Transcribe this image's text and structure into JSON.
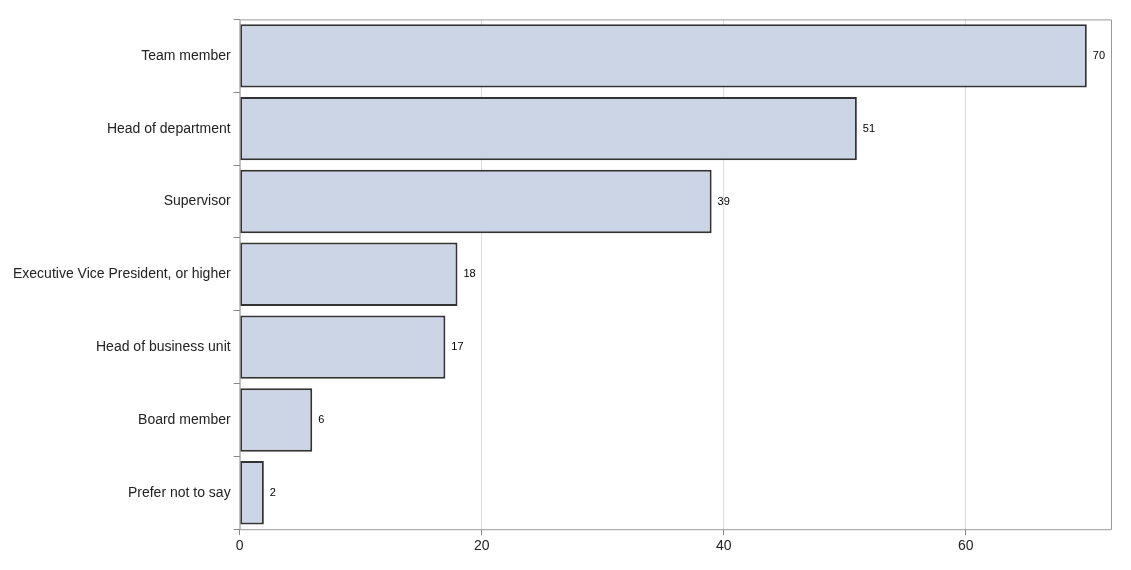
{
  "chart_data": {
    "type": "bar",
    "orientation": "horizontal",
    "categories": [
      "Team member",
      "Head of department",
      "Supervisor",
      "Executive Vice President, or higher",
      "Head of business unit",
      "Board member",
      "Prefer not to say"
    ],
    "values": [
      70,
      51,
      39,
      18,
      17,
      6,
      2
    ],
    "color": "#cbd5e5",
    "xlim": [
      0,
      72
    ],
    "xticks": [
      0,
      20,
      40,
      60
    ],
    "grid": "x",
    "data_labels": true,
    "legend": false
  }
}
